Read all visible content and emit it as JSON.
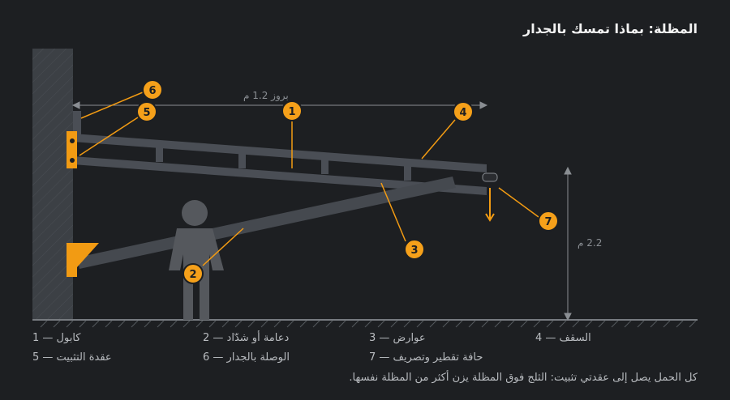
{
  "header": {
    "title": "المظلة: بماذا تمسك بالجدار"
  },
  "dimensions": {
    "projection": "بروز 1.2 م",
    "height": "2.2 م"
  },
  "markers": [
    {
      "label": "1"
    },
    {
      "label": "2"
    },
    {
      "label": "3"
    },
    {
      "label": "4"
    },
    {
      "label": "5"
    },
    {
      "label": "6"
    },
    {
      "label": "7"
    }
  ],
  "legend": [
    "1 — كابول",
    "2 — دعامة أو شدّاد",
    "3 — عوارض",
    "4 — السقف",
    "5 — عقدة التثبيت",
    "6 — الوصلة بالجدار",
    "7 — حافة تقطير وتصريف"
  ],
  "note": "كل الحمل يصل إلى عقدتي تثبيت: الثلج فوق المظلة يزن أكثر من المظلة نفسها."
}
